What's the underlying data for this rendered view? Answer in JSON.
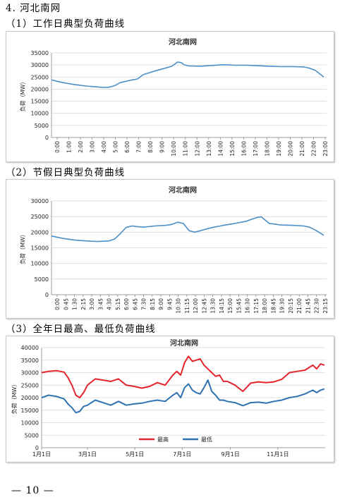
{
  "section": {
    "heading": "4. 河北南网",
    "sub1": "（1）工作日典型负荷曲线",
    "sub2": "（2）节假日典型负荷曲线",
    "sub3": "（3）全年日最高、最低负荷曲线"
  },
  "footer": {
    "page": "— 10 —"
  },
  "chart_data": [
    {
      "type": "line",
      "title": "河北南网",
      "ylabel": "负荷（MW）",
      "ylim": [
        0,
        35000
      ],
      "yticks": [
        "0",
        "5000",
        "10000",
        "15000",
        "20000",
        "25000",
        "30000",
        "35000"
      ],
      "xticks": [
        "0:00",
        "1:00",
        "2:00",
        "3:00",
        "4:00",
        "5:00",
        "6:00",
        "7:00",
        "8:00",
        "9:00",
        "10:00",
        "11:00",
        "12:00",
        "13:00",
        "14:00",
        "15:00",
        "16:00",
        "17:00",
        "18:00",
        "19:00",
        "20:00",
        "21:00",
        "22:00",
        "23:00"
      ],
      "grid": true,
      "series": [
        {
          "color": "#4a8fc7",
          "x": [
            0,
            1,
            2,
            3,
            4,
            4.5,
            5,
            5.5,
            6,
            7,
            7.5,
            8,
            9,
            10,
            10.5,
            11,
            11.3,
            11.6,
            12,
            13,
            14,
            15,
            16,
            17,
            18,
            19,
            20,
            21,
            22,
            22.5,
            23,
            23.5,
            23.75
          ],
          "y": [
            23800,
            22700,
            21900,
            21300,
            20900,
            20700,
            20800,
            21400,
            22700,
            23800,
            24200,
            26000,
            27500,
            28800,
            29500,
            31200,
            31000,
            30000,
            29600,
            29500,
            29800,
            30100,
            29900,
            29900,
            29700,
            29500,
            29300,
            29300,
            29200,
            28700,
            27800,
            26000,
            25000
          ]
        }
      ]
    },
    {
      "type": "line",
      "title": "河北南网",
      "ylabel": "负荷（MW）",
      "ylim": [
        0,
        30000
      ],
      "yticks": [
        "0",
        "5000",
        "10000",
        "15000",
        "20000",
        "25000",
        "30000"
      ],
      "xticks": [
        "0:00",
        "0:45",
        "1:30",
        "2:15",
        "3:00",
        "3:45",
        "4:30",
        "5:15",
        "6:00",
        "6:45",
        "7:30",
        "8:15",
        "9:00",
        "9:45",
        "10:30",
        "11:15",
        "12:00",
        "12:45",
        "13:30",
        "14:15",
        "15:00",
        "15:45",
        "16:30",
        "17:15",
        "18:00",
        "18:45",
        "19:30",
        "20:15",
        "21:00",
        "21:45",
        "22:30",
        "23:15"
      ],
      "grid": true,
      "series": [
        {
          "color": "#4a8fc7",
          "x": [
            0,
            1,
            2,
            3,
            4,
            5,
            5.5,
            6,
            6.5,
            7,
            7.5,
            8,
            9,
            10,
            10.5,
            11,
            11.5,
            12,
            12.5,
            13,
            14,
            15,
            16,
            17,
            17.5,
            18,
            18.3,
            18.6,
            19,
            20,
            21,
            22,
            22.5,
            23,
            23.5,
            23.75
          ],
          "y": [
            18800,
            18000,
            17500,
            17200,
            17000,
            17200,
            17800,
            19500,
            21500,
            22000,
            21800,
            21600,
            22000,
            22200,
            22500,
            23200,
            22800,
            20500,
            20000,
            20500,
            21500,
            22200,
            22800,
            23500,
            24200,
            24800,
            24900,
            24000,
            22800,
            22300,
            22200,
            22000,
            21600,
            20700,
            19600,
            19000
          ]
        }
      ]
    },
    {
      "type": "line",
      "title": "河北南网",
      "ylabel": "负荷（MW）",
      "ylim": [
        0,
        40000
      ],
      "yticks": [
        "0",
        "5000",
        "10000",
        "15000",
        "20000",
        "25000",
        "30000",
        "35000",
        "40000"
      ],
      "xticks": [
        "1月1日",
        "3月1日",
        "5月1日",
        "7月1日",
        "9月1日",
        "11月1日"
      ],
      "xtick_days": [
        1,
        60,
        121,
        182,
        244,
        305
      ],
      "grid": true,
      "legend": "bottom",
      "series": [
        {
          "name": "最高",
          "color": "#e3242b",
          "x": [
            1,
            10,
            20,
            30,
            35,
            40,
            45,
            50,
            55,
            60,
            70,
            80,
            90,
            100,
            110,
            120,
            130,
            140,
            150,
            160,
            170,
            175,
            180,
            185,
            190,
            195,
            200,
            205,
            210,
            215,
            220,
            225,
            230,
            235,
            240,
            250,
            260,
            270,
            280,
            290,
            300,
            310,
            320,
            330,
            340,
            350,
            355,
            360,
            365
          ],
          "y": [
            30000,
            30500,
            30800,
            30200,
            28000,
            25000,
            21000,
            20000,
            22000,
            25000,
            27500,
            27000,
            26500,
            27500,
            25000,
            24500,
            23800,
            24500,
            26000,
            25000,
            29000,
            30500,
            29000,
            34000,
            36500,
            34500,
            35000,
            35500,
            33000,
            31500,
            30000,
            28500,
            29000,
            26500,
            26500,
            25000,
            22500,
            25800,
            26300,
            26000,
            26300,
            27300,
            30000,
            30500,
            31000,
            33000,
            31500,
            33500,
            33000
          ]
        },
        {
          "name": "最低",
          "color": "#2f72b2",
          "x": [
            1,
            10,
            20,
            30,
            35,
            40,
            45,
            50,
            55,
            60,
            70,
            80,
            90,
            100,
            110,
            120,
            130,
            140,
            150,
            160,
            170,
            175,
            180,
            185,
            190,
            195,
            200,
            205,
            210,
            215,
            220,
            225,
            230,
            235,
            240,
            250,
            260,
            270,
            280,
            290,
            300,
            310,
            320,
            330,
            340,
            350,
            355,
            360,
            365
          ],
          "y": [
            20000,
            21000,
            20500,
            19500,
            17500,
            16000,
            14000,
            14500,
            16500,
            17000,
            19000,
            18000,
            17000,
            18500,
            17000,
            17500,
            17800,
            18500,
            19000,
            18500,
            21000,
            22000,
            20000,
            24000,
            25500,
            23000,
            22000,
            21500,
            24000,
            27000,
            22500,
            21000,
            19000,
            19000,
            18500,
            18000,
            16800,
            18000,
            18200,
            17800,
            18500,
            19000,
            20000,
            20500,
            21500,
            23000,
            22000,
            23000,
            23500
          ]
        }
      ]
    }
  ]
}
